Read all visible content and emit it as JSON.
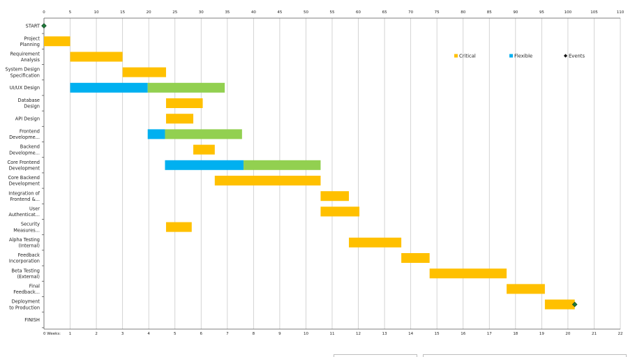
{
  "colors": {
    "critical": "#ffc000",
    "flexible": "#00b0f0",
    "slack": "#92d050",
    "event": "#1f7a3a",
    "grid": "#c9c9c9"
  },
  "legend": [
    {
      "label": "Critical",
      "kind": "critical"
    },
    {
      "label": "Flexible",
      "kind": "flexible"
    },
    {
      "label": "Events",
      "kind": "event"
    }
  ],
  "bottom_axis_title": "0  Weeks:",
  "chart_data": {
    "type": "gantt",
    "title": "",
    "x_top_ticks": [
      "0",
      "5",
      "10",
      "15",
      "20",
      "25",
      "30",
      "35",
      "40",
      "45",
      "50",
      "55",
      "60",
      "65",
      "70",
      "75",
      "80",
      "85",
      "90",
      "95",
      "100",
      "105",
      "110"
    ],
    "x_bottom_ticks": [
      "1",
      "2",
      "3",
      "4",
      "5",
      "6",
      "7",
      "8",
      "9",
      "10",
      "11",
      "12",
      "13",
      "14",
      "15",
      "16",
      "17",
      "18",
      "19",
      "20",
      "21",
      "22"
    ],
    "xlim": [
      0,
      110
    ],
    "grid": true,
    "legend_position": "top-right",
    "tasks": [
      {
        "label": [
          "START"
        ],
        "segments": [],
        "events": [
          0
        ]
      },
      {
        "label": [
          "Project",
          "Planning"
        ],
        "segments": [
          {
            "start": 0,
            "end": 5,
            "kind": "critical"
          }
        ]
      },
      {
        "label": [
          "Requirement",
          "Analysis"
        ],
        "segments": [
          {
            "start": 5,
            "end": 15,
            "kind": "critical"
          }
        ]
      },
      {
        "label": [
          "System Design",
          "Specification"
        ],
        "segments": [
          {
            "start": 15,
            "end": 23.3,
            "kind": "critical"
          }
        ]
      },
      {
        "label": [
          "UI/UX Design"
        ],
        "segments": [
          {
            "start": 5,
            "end": 19.8,
            "kind": "flexible"
          },
          {
            "start": 19.8,
            "end": 34.5,
            "kind": "slack"
          }
        ]
      },
      {
        "label": [
          "Database",
          "Design"
        ],
        "segments": [
          {
            "start": 23.3,
            "end": 30.3,
            "kind": "critical"
          }
        ]
      },
      {
        "label": [
          "API Design"
        ],
        "segments": [
          {
            "start": 23.3,
            "end": 28.5,
            "kind": "critical"
          }
        ]
      },
      {
        "label": [
          "Frontend",
          "Developme..."
        ],
        "segments": [
          {
            "start": 19.8,
            "end": 23.1,
            "kind": "flexible"
          },
          {
            "start": 23.1,
            "end": 37.8,
            "kind": "slack"
          }
        ]
      },
      {
        "label": [
          "Backend",
          "Developme..."
        ],
        "segments": [
          {
            "start": 28.5,
            "end": 32.6,
            "kind": "critical"
          }
        ]
      },
      {
        "label": [
          "Core Frontend",
          "Development"
        ],
        "segments": [
          {
            "start": 23.1,
            "end": 38.1,
            "kind": "flexible"
          },
          {
            "start": 38.1,
            "end": 52.8,
            "kind": "slack"
          }
        ]
      },
      {
        "label": [
          "Core Backend",
          "Development"
        ],
        "segments": [
          {
            "start": 32.6,
            "end": 52.8,
            "kind": "critical"
          }
        ]
      },
      {
        "label": [
          "Integration of",
          "Frontend &..."
        ],
        "segments": [
          {
            "start": 52.8,
            "end": 58.2,
            "kind": "critical"
          }
        ]
      },
      {
        "label": [
          "User",
          "Authenticat..."
        ],
        "segments": [
          {
            "start": 52.8,
            "end": 60.2,
            "kind": "critical"
          }
        ]
      },
      {
        "label": [
          "Security",
          "Measures..."
        ],
        "segments": [
          {
            "start": 23.3,
            "end": 28.2,
            "kind": "critical"
          }
        ]
      },
      {
        "label": [
          "Alpha Testing",
          "(Internal)"
        ],
        "segments": [
          {
            "start": 58.2,
            "end": 68.2,
            "kind": "critical"
          }
        ]
      },
      {
        "label": [
          "Feedback",
          "Incorporation"
        ],
        "segments": [
          {
            "start": 68.2,
            "end": 73.6,
            "kind": "critical"
          }
        ]
      },
      {
        "label": [
          "Beta Testing",
          "(External)"
        ],
        "segments": [
          {
            "start": 73.6,
            "end": 88.3,
            "kind": "critical"
          }
        ]
      },
      {
        "label": [
          "Final",
          "Feedback..."
        ],
        "segments": [
          {
            "start": 88.3,
            "end": 95.6,
            "kind": "critical"
          }
        ]
      },
      {
        "label": [
          "Deployment",
          "to Production"
        ],
        "segments": [
          {
            "start": 95.6,
            "end": 101.3,
            "kind": "critical"
          }
        ],
        "events": [
          101.3
        ]
      },
      {
        "label": [
          "FINISH"
        ],
        "segments": []
      }
    ]
  }
}
